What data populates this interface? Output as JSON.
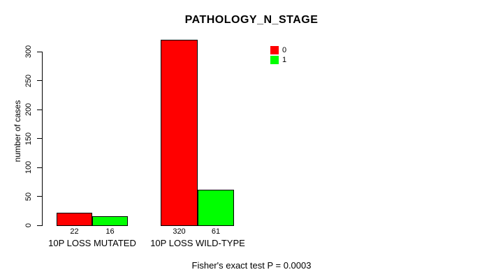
{
  "title": "PATHOLOGY_N_STAGE",
  "footer": "Fisher's exact test P = 0.0003",
  "y_axis": {
    "label": "number of cases",
    "ticks": [
      0,
      50,
      100,
      150,
      200,
      250,
      300
    ]
  },
  "legend": {
    "entries": [
      {
        "label": "0",
        "color": "#FF0000"
      },
      {
        "label": "1",
        "color": "#00FF00"
      }
    ]
  },
  "groups": [
    {
      "label": "10P LOSS MUTATED"
    },
    {
      "label": "10P LOSS WILD-TYPE"
    }
  ],
  "bars": [
    {
      "group": "10P LOSS MUTATED",
      "series": "0",
      "value": 22,
      "color": "#FF0000"
    },
    {
      "group": "10P LOSS MUTATED",
      "series": "1",
      "value": 16,
      "color": "#00FF00"
    },
    {
      "group": "10P LOSS WILD-TYPE",
      "series": "0",
      "value": 320,
      "color": "#FF0000"
    },
    {
      "group": "10P LOSS WILD-TYPE",
      "series": "1",
      "value": 61,
      "color": "#00FF00"
    }
  ],
  "chart_data": {
    "type": "bar",
    "title": "PATHOLOGY_N_STAGE",
    "categories": [
      "10P LOSS MUTATED",
      "10P LOSS WILD-TYPE"
    ],
    "series": [
      {
        "name": "0",
        "color": "#FF0000",
        "values": [
          22,
          320
        ]
      },
      {
        "name": "1",
        "color": "#00FF00",
        "values": [
          16,
          61
        ]
      }
    ],
    "xlabel": "",
    "ylabel": "number of cases",
    "ylim": [
      0,
      300
    ],
    "bar_labels": [
      22,
      16,
      320,
      61
    ],
    "annotation": "Fisher's exact test P = 0.0003",
    "legend_position": "inside-top-right",
    "grid": false,
    "background": "#FFFFFF"
  }
}
